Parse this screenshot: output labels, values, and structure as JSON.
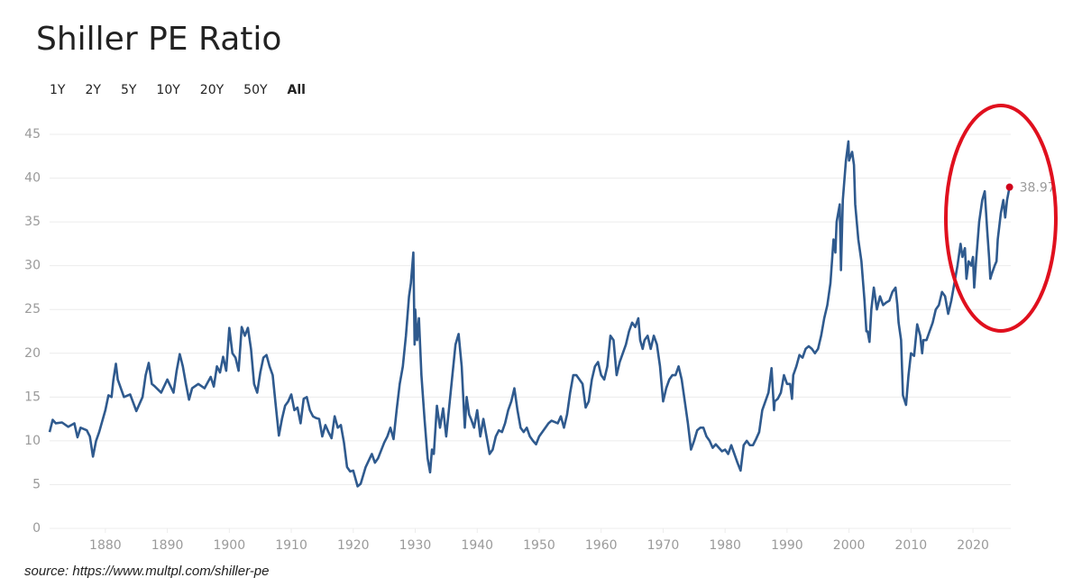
{
  "chart_data": {
    "type": "line",
    "title": "Shiller PE Ratio",
    "range_buttons": [
      {
        "label": "1Y",
        "selected": false
      },
      {
        "label": "2Y",
        "selected": false
      },
      {
        "label": "5Y",
        "selected": false
      },
      {
        "label": "10Y",
        "selected": false
      },
      {
        "label": "20Y",
        "selected": false
      },
      {
        "label": "50Y",
        "selected": false
      },
      {
        "label": "All",
        "selected": true
      }
    ],
    "source": "source: https://www.multpl.com/shiller-pe",
    "xlim": [
      1871,
      2026.1
    ],
    "xticks": [
      1880,
      1890,
      1900,
      1910,
      1920,
      1930,
      1940,
      1950,
      1960,
      1970,
      1980,
      1990,
      2000,
      2010,
      2020
    ],
    "ylim": [
      0,
      45
    ],
    "yticks": [
      0,
      5,
      10,
      15,
      20,
      25,
      30,
      35,
      40,
      45
    ],
    "grid": true,
    "x": [
      1871,
      1871.5,
      1872,
      1873,
      1874,
      1875,
      1875.5,
      1876,
      1877,
      1877.5,
      1878,
      1878.5,
      1879,
      1880,
      1880.5,
      1881,
      1881.3,
      1881.7,
      1882,
      1883,
      1884,
      1885,
      1886,
      1886.5,
      1887,
      1887.5,
      1888,
      1889,
      1890,
      1891,
      1891.5,
      1892,
      1892.5,
      1893,
      1893.5,
      1894,
      1895,
      1896,
      1897,
      1897.5,
      1898,
      1898.5,
      1899,
      1899.5,
      1900,
      1900.5,
      1901,
      1901.5,
      1902,
      1902.5,
      1903,
      1903.5,
      1904,
      1904.5,
      1905,
      1905.5,
      1906,
      1906.5,
      1907,
      1907.5,
      1908,
      1908.5,
      1909,
      1909.5,
      1910,
      1910.5,
      1911,
      1911.5,
      1912,
      1912.5,
      1913,
      1913.5,
      1914,
      1914.5,
      1915,
      1915.5,
      1916,
      1916.5,
      1917,
      1917.5,
      1918,
      1918.5,
      1919,
      1919.5,
      1920,
      1920.7,
      1921.2,
      1922,
      1923,
      1923.5,
      1924,
      1925,
      1925.5,
      1926,
      1926.5,
      1927,
      1927.5,
      1928,
      1928.5,
      1929,
      1929.3,
      1929.7,
      1929.9,
      1930,
      1930.3,
      1930.6,
      1931,
      1931.5,
      1932,
      1932.4,
      1932.7,
      1933,
      1933.5,
      1934,
      1934.5,
      1935,
      1935.5,
      1936,
      1936.5,
      1937,
      1937.5,
      1938,
      1938.3,
      1938.7,
      1939,
      1939.5,
      1940,
      1940.5,
      1941,
      1941.5,
      1942,
      1942.5,
      1943,
      1943.5,
      1944,
      1944.5,
      1945,
      1945.5,
      1946,
      1946.5,
      1947,
      1947.5,
      1948,
      1948.5,
      1949,
      1949.5,
      1950,
      1951,
      1951.5,
      1952,
      1953,
      1953.5,
      1954,
      1954.5,
      1955,
      1955.5,
      1956,
      1957,
      1957.5,
      1958,
      1958.5,
      1959,
      1959.5,
      1960,
      1960.5,
      1961,
      1961.5,
      1962,
      1962.5,
      1963,
      1964,
      1964.5,
      1965,
      1965.5,
      1966,
      1966.3,
      1966.7,
      1967,
      1967.5,
      1968,
      1968.5,
      1969,
      1969.5,
      1970,
      1970.5,
      1971,
      1971.5,
      1972,
      1972.5,
      1973,
      1973.5,
      1974,
      1974.5,
      1975,
      1975.5,
      1976,
      1976.5,
      1977,
      1977.5,
      1978,
      1978.5,
      1979,
      1979.5,
      1980,
      1980.5,
      1981,
      1981.5,
      1982,
      1982.5,
      1983,
      1983.5,
      1984,
      1984.5,
      1985,
      1985.5,
      1986,
      1986.5,
      1987,
      1987.5,
      1987.9,
      1988,
      1988.5,
      1989,
      1989.5,
      1990,
      1990.5,
      1990.8,
      1991,
      1991.5,
      1992,
      1992.5,
      1993,
      1993.5,
      1994,
      1994.5,
      1995,
      1995.5,
      1996,
      1996.5,
      1997,
      1997.5,
      1997.8,
      1998,
      1998.5,
      1998.7,
      1999,
      1999.5,
      1999.9,
      2000,
      2000.5,
      2000.8,
      2001,
      2001.5,
      2002,
      2002.5,
      2002.8,
      2003,
      2003.3,
      2003.6,
      2004,
      2004.5,
      2005,
      2005.5,
      2006,
      2006.5,
      2007,
      2007.5,
      2007.8,
      2008,
      2008.4,
      2008.7,
      2009.2,
      2009.6,
      2010,
      2010.5,
      2011,
      2011.5,
      2011.8,
      2012,
      2012.5,
      2013,
      2013.5,
      2014,
      2014.5,
      2015,
      2015.5,
      2016,
      2016.5,
      2017,
      2017.5,
      2018,
      2018.3,
      2018.7,
      2018.95,
      2019.3,
      2019.7,
      2020,
      2020.2,
      2020.5,
      2021,
      2021.5,
      2021.9,
      2022.3,
      2022.6,
      2022.8,
      2023,
      2023.5,
      2023.8,
      2024,
      2024.5,
      2024.9,
      2025.2,
      2025.5,
      2025.9
    ],
    "series": [
      {
        "color": "#2f5a8e",
        "values": [
          11.0,
          12.4,
          12.0,
          12.1,
          11.6,
          12.0,
          10.4,
          11.5,
          11.2,
          10.5,
          8.2,
          10.0,
          11.0,
          13.5,
          15.2,
          15.0,
          17.0,
          18.8,
          17.0,
          15.0,
          15.3,
          13.4,
          15.0,
          17.5,
          18.9,
          16.5,
          16.2,
          15.5,
          17.0,
          15.5,
          18.0,
          19.9,
          18.5,
          16.5,
          14.7,
          16.0,
          16.5,
          16.0,
          17.3,
          16.2,
          18.5,
          17.8,
          19.6,
          18.0,
          22.9,
          20.0,
          19.5,
          18.0,
          23.0,
          22.0,
          22.9,
          20.5,
          16.5,
          15.5,
          17.8,
          19.5,
          19.8,
          18.5,
          17.5,
          14.0,
          10.6,
          12.5,
          14.0,
          14.5,
          15.3,
          13.5,
          13.8,
          12.0,
          14.8,
          15.0,
          13.5,
          12.8,
          12.6,
          12.5,
          10.5,
          11.8,
          11.0,
          10.3,
          12.8,
          11.5,
          11.8,
          9.8,
          7.0,
          6.5,
          6.6,
          4.8,
          5.1,
          7.0,
          8.5,
          7.5,
          8.0,
          9.8,
          10.5,
          11.5,
          10.2,
          13.5,
          16.5,
          18.5,
          22.0,
          26.5,
          28.0,
          31.5,
          21.0,
          25.0,
          21.5,
          24.0,
          17.5,
          12.5,
          8.0,
          6.4,
          9.0,
          8.5,
          14.0,
          11.5,
          13.7,
          10.5,
          14.0,
          17.5,
          21.0,
          22.2,
          18.5,
          11.5,
          15.0,
          13.0,
          12.5,
          11.5,
          13.5,
          10.5,
          12.5,
          10.5,
          8.5,
          9.0,
          10.5,
          11.2,
          11.0,
          12.0,
          13.5,
          14.5,
          16.0,
          13.5,
          11.5,
          11.0,
          11.5,
          10.5,
          10.0,
          9.6,
          10.5,
          11.5,
          12.0,
          12.3,
          12.0,
          12.8,
          11.5,
          13.0,
          15.5,
          17.5,
          17.5,
          16.5,
          13.8,
          14.5,
          17.0,
          18.5,
          19.0,
          17.5,
          17.0,
          18.5,
          22.0,
          21.5,
          17.5,
          19.0,
          21.0,
          22.5,
          23.5,
          23.0,
          24.0,
          21.5,
          20.5,
          21.5,
          22.0,
          20.5,
          22.0,
          21.0,
          18.5,
          14.5,
          16.0,
          17.0,
          17.5,
          17.5,
          18.5,
          17.0,
          14.5,
          12.0,
          9.0,
          10.0,
          11.2,
          11.5,
          11.5,
          10.5,
          10.0,
          9.2,
          9.6,
          9.2,
          8.8,
          9.0,
          8.5,
          9.5,
          8.5,
          7.5,
          6.6,
          9.5,
          10.0,
          9.5,
          9.5,
          10.2,
          11.0,
          13.5,
          14.5,
          15.5,
          18.3,
          13.5,
          14.5,
          14.8,
          15.5,
          17.5,
          16.5,
          16.5,
          14.8,
          17.5,
          18.5,
          19.8,
          19.5,
          20.5,
          20.8,
          20.5,
          20.0,
          20.5,
          22.0,
          24.0,
          25.5,
          28.0,
          33.0,
          31.5,
          35.0,
          37.0,
          29.5,
          37.5,
          42.0,
          44.2,
          42.0,
          43.0,
          41.5,
          37.0,
          33.0,
          30.5,
          26.0,
          22.5,
          22.5,
          21.3,
          25.0,
          27.5,
          25.0,
          26.5,
          25.5,
          25.8,
          26.0,
          27.0,
          27.5,
          25.5,
          23.5,
          21.5,
          15.2,
          14.1,
          17.5,
          20.0,
          19.7,
          23.3,
          22.0,
          20.0,
          21.5,
          21.5,
          22.5,
          23.5,
          25.0,
          25.5,
          27.0,
          26.5,
          24.5,
          26.0,
          28.0,
          30.0,
          32.5,
          31.0,
          32.0,
          28.5,
          30.5,
          30.0,
          31.0,
          27.5,
          30.5,
          35.0,
          37.5,
          38.5,
          34.0,
          31.0,
          28.5,
          29.0,
          30.0,
          30.5,
          33.0,
          36.0,
          37.5,
          35.5,
          37.5,
          38.97
        ]
      }
    ],
    "last_point_color": "#d0021b"
  }
}
